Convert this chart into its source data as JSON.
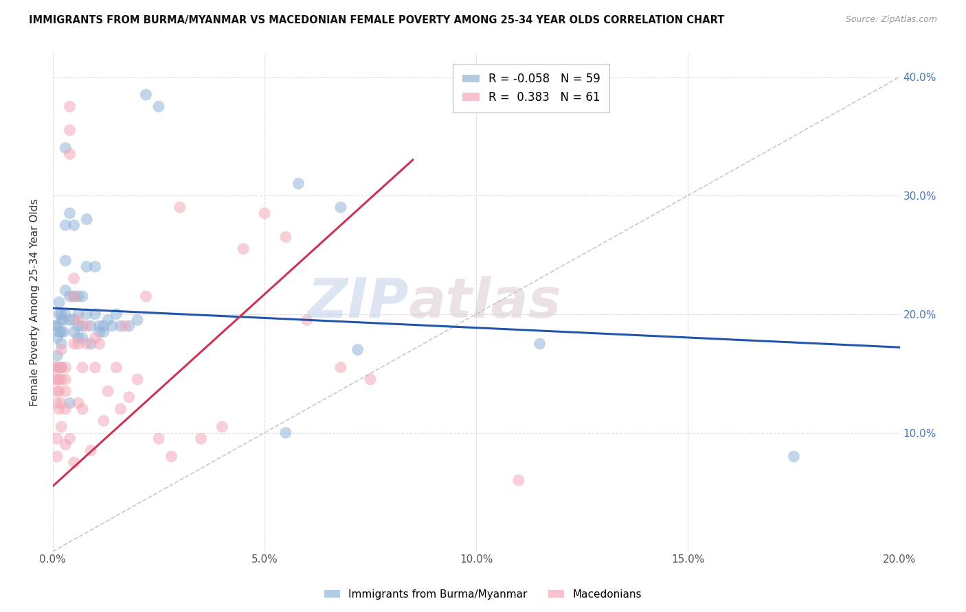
{
  "title": "IMMIGRANTS FROM BURMA/MYANMAR VS MACEDONIAN FEMALE POVERTY AMONG 25-34 YEAR OLDS CORRELATION CHART",
  "source": "Source: ZipAtlas.com",
  "ylabel": "Female Poverty Among 25-34 Year Olds",
  "xlim": [
    0,
    0.2
  ],
  "ylim": [
    0,
    0.42
  ],
  "xticks": [
    0.0,
    0.05,
    0.1,
    0.15,
    0.2
  ],
  "yticks": [
    0.0,
    0.1,
    0.2,
    0.3,
    0.4
  ],
  "blue_R": "-0.058",
  "blue_N": "59",
  "pink_R": "0.383",
  "pink_N": "61",
  "blue_color": "#92b4d8",
  "pink_color": "#f4a8b8",
  "blue_line_color": "#2255aa",
  "pink_line_color": "#cc3355",
  "ref_line_color": "#c8c8c8",
  "watermark_zip": "ZIP",
  "watermark_atlas": "atlas",
  "blue_line_x0": 0.0,
  "blue_line_y0": 0.205,
  "blue_line_x1": 0.2,
  "blue_line_y1": 0.172,
  "pink_line_x0": 0.0,
  "pink_line_y0": 0.055,
  "pink_line_x1": 0.085,
  "pink_line_y1": 0.33,
  "blue_scatter_x": [
    0.0005,
    0.001,
    0.001,
    0.001,
    0.0015,
    0.0015,
    0.0015,
    0.002,
    0.002,
    0.002,
    0.002,
    0.002,
    0.0025,
    0.0025,
    0.003,
    0.003,
    0.003,
    0.003,
    0.003,
    0.004,
    0.004,
    0.004,
    0.004,
    0.005,
    0.005,
    0.005,
    0.005,
    0.006,
    0.006,
    0.006,
    0.006,
    0.007,
    0.007,
    0.007,
    0.008,
    0.008,
    0.008,
    0.009,
    0.009,
    0.01,
    0.01,
    0.011,
    0.011,
    0.012,
    0.012,
    0.013,
    0.014,
    0.015,
    0.016,
    0.018,
    0.02,
    0.022,
    0.025,
    0.055,
    0.058,
    0.068,
    0.072,
    0.115,
    0.175
  ],
  "blue_scatter_y": [
    0.19,
    0.19,
    0.18,
    0.165,
    0.21,
    0.2,
    0.185,
    0.2,
    0.195,
    0.185,
    0.175,
    0.155,
    0.195,
    0.185,
    0.34,
    0.275,
    0.245,
    0.22,
    0.2,
    0.285,
    0.215,
    0.195,
    0.125,
    0.275,
    0.215,
    0.195,
    0.185,
    0.215,
    0.2,
    0.19,
    0.18,
    0.215,
    0.19,
    0.18,
    0.28,
    0.24,
    0.2,
    0.19,
    0.175,
    0.24,
    0.2,
    0.19,
    0.185,
    0.19,
    0.185,
    0.195,
    0.19,
    0.2,
    0.19,
    0.19,
    0.195,
    0.385,
    0.375,
    0.1,
    0.31,
    0.29,
    0.17,
    0.175,
    0.08
  ],
  "pink_scatter_x": [
    0.0003,
    0.0005,
    0.001,
    0.001,
    0.001,
    0.001,
    0.001,
    0.001,
    0.0015,
    0.0015,
    0.0015,
    0.0015,
    0.002,
    0.002,
    0.002,
    0.002,
    0.002,
    0.003,
    0.003,
    0.003,
    0.003,
    0.003,
    0.004,
    0.004,
    0.004,
    0.004,
    0.005,
    0.005,
    0.005,
    0.005,
    0.006,
    0.006,
    0.006,
    0.007,
    0.007,
    0.008,
    0.008,
    0.009,
    0.01,
    0.01,
    0.011,
    0.012,
    0.013,
    0.015,
    0.016,
    0.017,
    0.018,
    0.02,
    0.022,
    0.025,
    0.028,
    0.03,
    0.035,
    0.04,
    0.045,
    0.05,
    0.055,
    0.06,
    0.068,
    0.075,
    0.11
  ],
  "pink_scatter_y": [
    0.155,
    0.145,
    0.155,
    0.145,
    0.135,
    0.125,
    0.095,
    0.08,
    0.155,
    0.145,
    0.135,
    0.12,
    0.17,
    0.155,
    0.145,
    0.125,
    0.105,
    0.155,
    0.145,
    0.135,
    0.12,
    0.09,
    0.375,
    0.355,
    0.335,
    0.095,
    0.23,
    0.215,
    0.175,
    0.075,
    0.195,
    0.175,
    0.125,
    0.155,
    0.12,
    0.19,
    0.175,
    0.085,
    0.18,
    0.155,
    0.175,
    0.11,
    0.135,
    0.155,
    0.12,
    0.19,
    0.13,
    0.145,
    0.215,
    0.095,
    0.08,
    0.29,
    0.095,
    0.105,
    0.255,
    0.285,
    0.265,
    0.195,
    0.155,
    0.145,
    0.06
  ]
}
